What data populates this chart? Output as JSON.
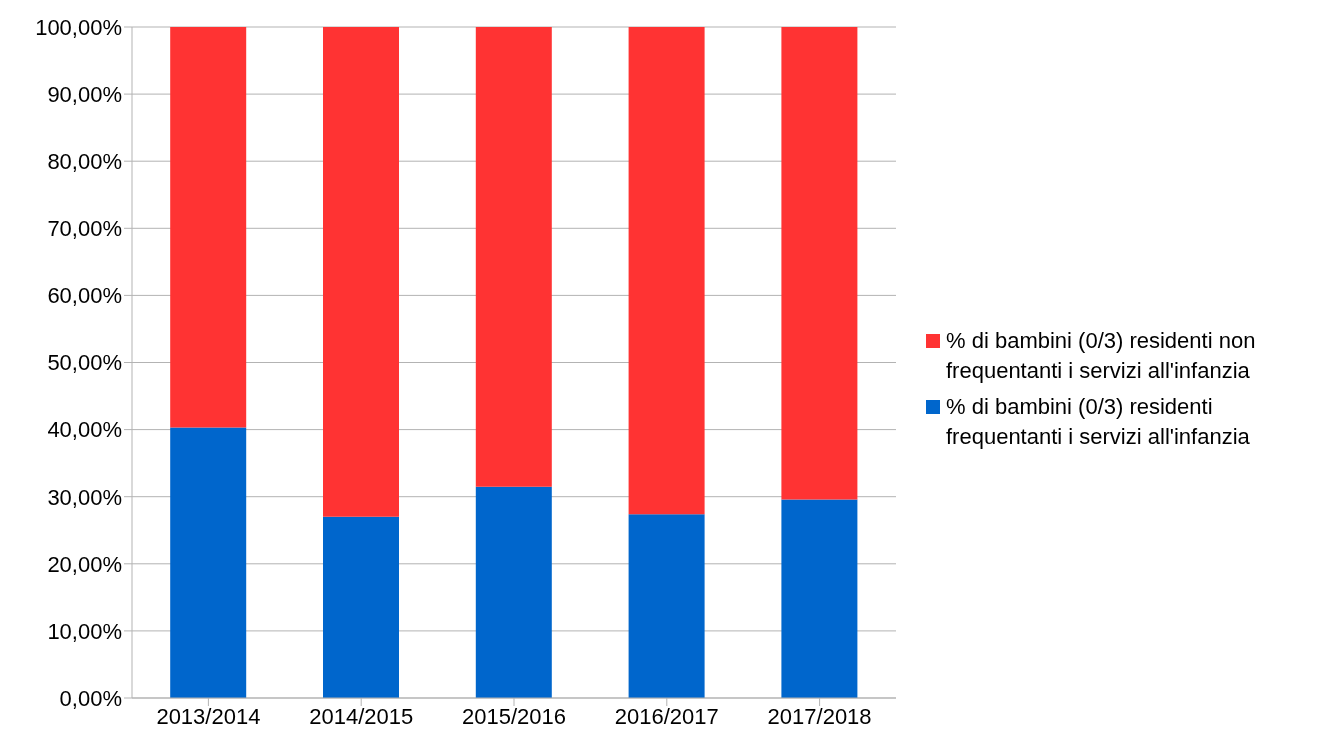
{
  "chart_data": {
    "type": "bar",
    "stacked": true,
    "categories": [
      "2013/2014",
      "2014/2015",
      "2015/2016",
      "2016/2017",
      "2017/2018"
    ],
    "series": [
      {
        "name": "% di bambini (0/3) residenti frequentanti i servizi all'infanzia",
        "color": "#0066cc",
        "values": [
          40.3,
          27.0,
          31.5,
          27.4,
          29.6
        ]
      },
      {
        "name": "% di bambini (0/3) residenti non frequentanti i servizi all'infanzia",
        "color": "#ff3333",
        "values": [
          59.7,
          73.0,
          68.5,
          72.6,
          70.4
        ]
      }
    ],
    "ylim": [
      0,
      100
    ],
    "yticks": [
      {
        "value": 0,
        "label": "0,00%"
      },
      {
        "value": 10,
        "label": "10,00%"
      },
      {
        "value": 20,
        "label": "20,00%"
      },
      {
        "value": 30,
        "label": "30,00%"
      },
      {
        "value": 40,
        "label": "40,00%"
      },
      {
        "value": 50,
        "label": "50,00%"
      },
      {
        "value": 60,
        "label": "60,00%"
      },
      {
        "value": 70,
        "label": "70,00%"
      },
      {
        "value": 80,
        "label": "80,00%"
      },
      {
        "value": 90,
        "label": "90,00%"
      },
      {
        "value": 100,
        "label": "100,00%"
      }
    ],
    "grid": "y",
    "legend": "right"
  }
}
